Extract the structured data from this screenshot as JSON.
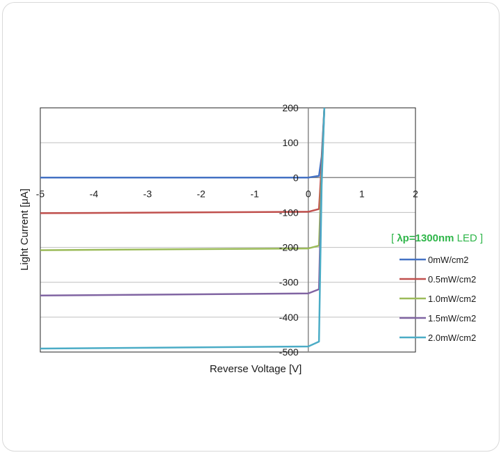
{
  "chart_data": {
    "type": "line",
    "title": "",
    "xlabel": "Reverse Voltage [V]",
    "ylabel": "Light Current [μA]",
    "xlim": [
      -5,
      2
    ],
    "ylim": [
      -500,
      200
    ],
    "x_ticks": [
      "-5",
      "-4",
      "-3",
      "-2",
      "-1",
      "0",
      "1",
      "2"
    ],
    "y_ticks": [
      "200",
      "100",
      "0",
      "-100",
      "-200",
      "-300",
      "-400",
      "-500"
    ],
    "grid": "horizontal",
    "legend_position": "right",
    "annotation": {
      "text_open": "[ ",
      "text_main": "λp=1300nm",
      "text_rest": " LED ]",
      "color": "#2fb64a"
    },
    "series": [
      {
        "name": "0mW/cm2",
        "color": "#4472c4",
        "x": [
          -5,
          0,
          0.2,
          0.25,
          0.3
        ],
        "y": [
          0,
          0,
          5,
          60,
          200
        ]
      },
      {
        "name": "0.5mW/cm2",
        "color": "#c0504d",
        "x": [
          -5,
          0,
          0.2,
          0.25,
          0.3
        ],
        "y": [
          -102,
          -98,
          -90,
          40,
          200
        ]
      },
      {
        "name": "1.0mW/cm2",
        "color": "#9bbb59",
        "x": [
          -5,
          0,
          0.2,
          0.25,
          0.3
        ],
        "y": [
          -208,
          -203,
          -195,
          20,
          200
        ]
      },
      {
        "name": "1.5mW/cm2",
        "color": "#8064a2",
        "x": [
          -5,
          0,
          0.2,
          0.25,
          0.3
        ],
        "y": [
          -338,
          -332,
          -320,
          0,
          200
        ]
      },
      {
        "name": "2.0mW/cm2",
        "color": "#4bacc6",
        "x": [
          -5,
          0,
          0.2,
          0.25,
          0.3
        ],
        "y": [
          -490,
          -484,
          -470,
          -20,
          200
        ]
      }
    ]
  }
}
